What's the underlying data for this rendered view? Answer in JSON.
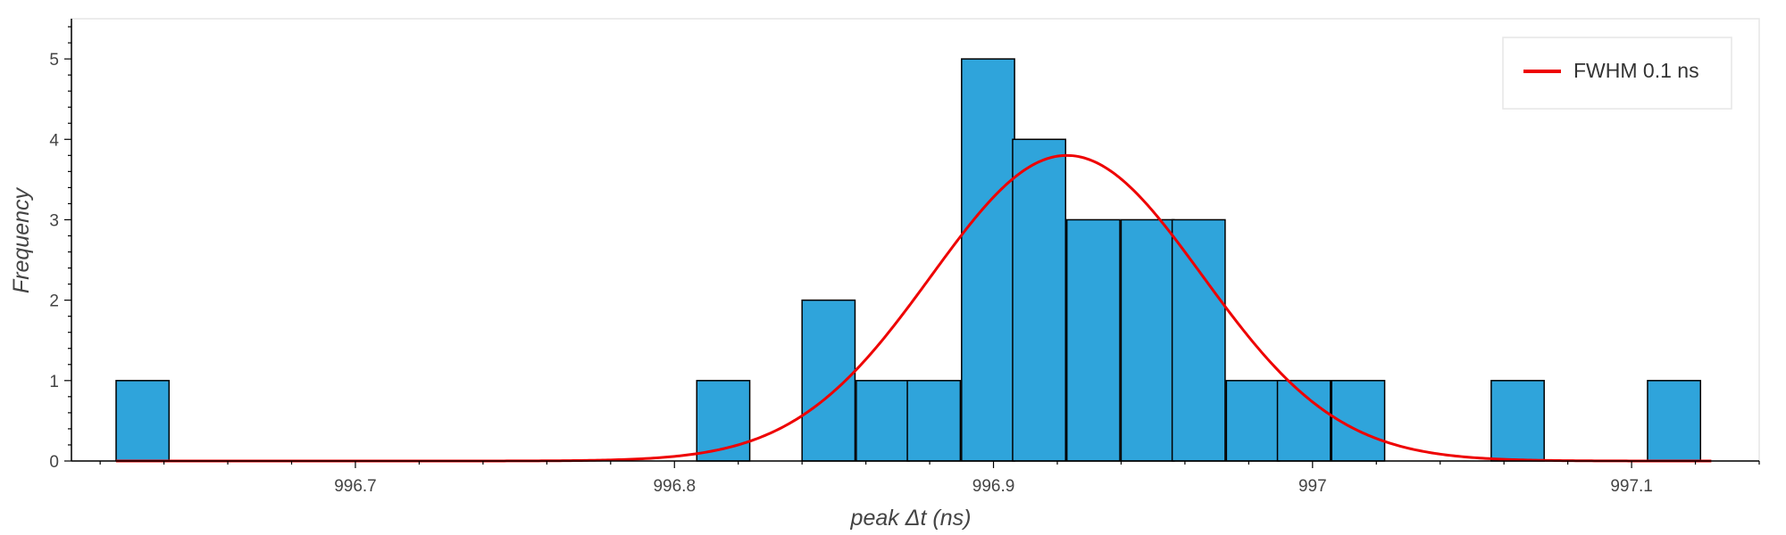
{
  "chart_data": {
    "type": "bar",
    "title": "",
    "xlabel": "peak Δt (ns)",
    "ylabel": "Frequency",
    "xlim": [
      996.611,
      997.14
    ],
    "ylim": [
      0,
      5.5
    ],
    "x_ticks": [
      996.7,
      996.8,
      996.9,
      997,
      997.1
    ],
    "x_tick_labels": [
      "996.7",
      "996.8",
      "996.9",
      "997",
      "997.1"
    ],
    "y_ticks": [
      0,
      1,
      2,
      3,
      4,
      5
    ],
    "y_tick_labels": [
      "0",
      "1",
      "2",
      "3",
      "4",
      "5"
    ],
    "bin_width": 0.0166,
    "bins": [
      {
        "start": 996.625,
        "count": 1
      },
      {
        "start": 996.807,
        "count": 1
      },
      {
        "start": 996.84,
        "count": 2
      },
      {
        "start": 996.857,
        "count": 1
      },
      {
        "start": 996.873,
        "count": 1
      },
      {
        "start": 996.89,
        "count": 5
      },
      {
        "start": 996.906,
        "count": 4
      },
      {
        "start": 996.923,
        "count": 3
      },
      {
        "start": 996.94,
        "count": 3
      },
      {
        "start": 996.956,
        "count": 3
      },
      {
        "start": 996.973,
        "count": 1
      },
      {
        "start": 996.989,
        "count": 1
      },
      {
        "start": 997.006,
        "count": 1
      },
      {
        "start": 997.056,
        "count": 1
      },
      {
        "start": 997.105,
        "count": 1
      }
    ],
    "fit": {
      "name": "FWHM 0.1 ns",
      "kind": "gaussian",
      "amplitude": 3.8,
      "mean": 996.923,
      "fwhm": 0.1
    },
    "legend": {
      "position": "top-right",
      "entries": [
        "FWHM 0.1 ns"
      ]
    },
    "colors": {
      "bar_fill": "#2fa4db",
      "bar_edge": "#000000",
      "fit_line": "#ee0000",
      "axis": "#000000",
      "frame": "#e6e6e6"
    }
  }
}
